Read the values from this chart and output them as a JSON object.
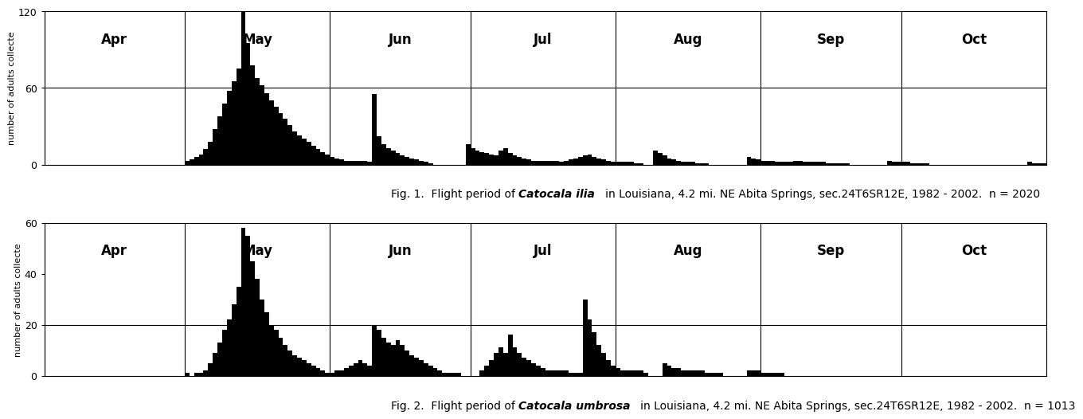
{
  "fig1_prefix": "Fig. 1.  Flight period of ",
  "fig1_species": "Catocala ilia",
  "fig1_suffix": "   in Louisiana, 4.2 mi. NE Abita Springs, sec.24T6SR12E, 1982 - 2002.  n = 2020",
  "fig2_prefix": "Fig. 2.  Flight period of ",
  "fig2_species": "Catocala umbrosa",
  "fig2_suffix": "   in Louisiana, 4.2 mi. NE Abita Springs, sec.24T6SR12E, 1982 - 2002.  n = 1013",
  "ylabel": "number of adults collecte",
  "month_labels": [
    "Apr",
    "May",
    "Jun",
    "Jul",
    "Aug",
    "Sep",
    "Oct"
  ],
  "month_days": [
    30,
    31,
    30,
    31,
    31,
    30,
    31
  ],
  "fig1_ylim": [
    0,
    120
  ],
  "fig1_yticks": [
    0,
    60,
    120
  ],
  "fig2_ylim": [
    0,
    60
  ],
  "fig2_yticks": [
    0,
    20,
    40,
    60
  ],
  "fig1_hline": 60,
  "fig2_hline": 20,
  "bar_color": "#000000",
  "bg_color": "#ffffff",
  "fig1_values": [
    0,
    0,
    0,
    0,
    0,
    0,
    0,
    0,
    0,
    0,
    0,
    0,
    0,
    0,
    0,
    0,
    0,
    0,
    0,
    0,
    0,
    0,
    0,
    0,
    0,
    0,
    0,
    0,
    0,
    0,
    3,
    4,
    6,
    8,
    12,
    18,
    28,
    38,
    48,
    58,
    65,
    75,
    120,
    95,
    78,
    68,
    62,
    56,
    50,
    45,
    40,
    36,
    31,
    26,
    23,
    20,
    18,
    15,
    12,
    10,
    8,
    6,
    5,
    4,
    3,
    3,
    3,
    3,
    3,
    2,
    55,
    22,
    16,
    13,
    11,
    9,
    7,
    6,
    5,
    4,
    3,
    2,
    1,
    0,
    0,
    0,
    0,
    0,
    0,
    0,
    16,
    13,
    11,
    10,
    9,
    8,
    7,
    11,
    13,
    9,
    7,
    6,
    5,
    4,
    3,
    3,
    3,
    3,
    3,
    3,
    2,
    3,
    4,
    5,
    6,
    7,
    8,
    6,
    5,
    4,
    3,
    2,
    2,
    2,
    2,
    2,
    1,
    1,
    0,
    0,
    11,
    9,
    7,
    5,
    4,
    3,
    2,
    2,
    2,
    1,
    1,
    1,
    0,
    0,
    0,
    0,
    0,
    0,
    0,
    0,
    6,
    5,
    4,
    3,
    3,
    3,
    2,
    2,
    2,
    2,
    3,
    3,
    2,
    2,
    2,
    2,
    2,
    1,
    1,
    1,
    1,
    1,
    0,
    0,
    0,
    0,
    0,
    0,
    0,
    0,
    3,
    2,
    2,
    2,
    2,
    1,
    1,
    1,
    1,
    0,
    0,
    0,
    0,
    0,
    0,
    0,
    0,
    0,
    0,
    0,
    0,
    0,
    0,
    0,
    0,
    0,
    0,
    0,
    0,
    0,
    2,
    1,
    1,
    1,
    1,
    0,
    0,
    0,
    0,
    0,
    0,
    0,
    0,
    0,
    0,
    0,
    0,
    0,
    0,
    0,
    0,
    0,
    0,
    0,
    0,
    0,
    0,
    0,
    0,
    0,
    0,
    0,
    0,
    0
  ],
  "fig2_values": [
    0,
    0,
    0,
    0,
    0,
    0,
    0,
    0,
    0,
    0,
    0,
    0,
    0,
    0,
    0,
    0,
    0,
    0,
    0,
    0,
    0,
    0,
    0,
    0,
    0,
    0,
    0,
    0,
    0,
    0,
    1,
    0,
    1,
    1,
    2,
    5,
    9,
    13,
    18,
    22,
    28,
    35,
    58,
    55,
    45,
    38,
    30,
    25,
    20,
    18,
    15,
    12,
    10,
    8,
    7,
    6,
    5,
    4,
    3,
    2,
    1,
    1,
    2,
    2,
    3,
    4,
    5,
    6,
    5,
    4,
    20,
    18,
    15,
    13,
    12,
    14,
    12,
    10,
    8,
    7,
    6,
    5,
    4,
    3,
    2,
    1,
    1,
    1,
    1,
    0,
    0,
    0,
    0,
    2,
    4,
    6,
    9,
    11,
    9,
    16,
    11,
    9,
    7,
    6,
    5,
    4,
    3,
    2,
    2,
    2,
    2,
    2,
    1,
    1,
    1,
    30,
    22,
    17,
    12,
    9,
    6,
    4,
    3,
    2,
    2,
    2,
    2,
    2,
    1,
    0,
    0,
    0,
    5,
    4,
    3,
    3,
    2,
    2,
    2,
    2,
    2,
    1,
    1,
    1,
    1,
    0,
    0,
    0,
    0,
    0,
    2,
    2,
    2,
    1,
    1,
    1,
    1,
    1,
    0,
    0,
    0,
    0,
    0,
    0,
    0,
    0,
    0,
    0,
    0,
    0,
    0,
    0,
    0,
    0,
    0,
    0,
    0,
    0,
    0,
    0,
    0,
    0,
    0,
    0,
    0,
    0,
    0,
    0,
    0,
    0,
    0,
    0,
    0,
    0,
    0,
    0,
    0,
    0,
    0,
    0,
    0,
    0,
    0,
    0,
    0,
    0,
    0,
    0,
    0,
    0,
    0,
    0,
    0,
    0,
    0,
    0,
    0,
    0,
    0,
    0,
    0,
    0,
    0,
    0,
    0,
    0,
    0,
    0,
    0,
    0,
    0,
    0,
    0,
    0,
    0,
    0,
    0,
    0,
    0,
    0,
    0,
    0,
    0,
    0
  ]
}
